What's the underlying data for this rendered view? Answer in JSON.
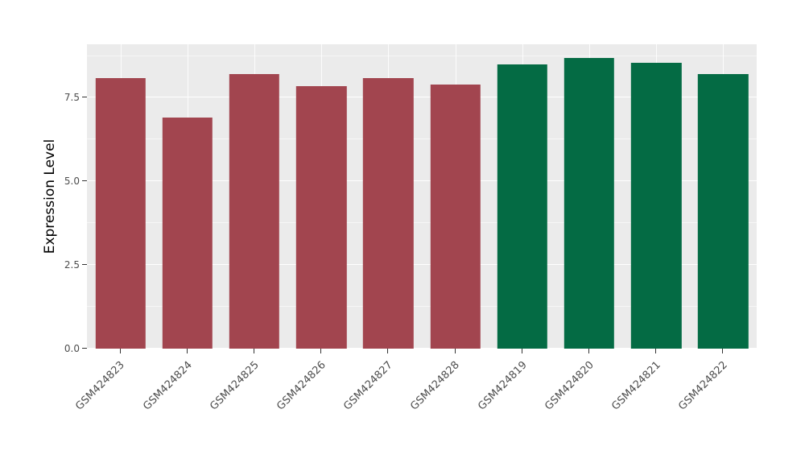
{
  "figure": {
    "background": "#FFFFFF",
    "panel_background": "#EBEBEB",
    "grid_major_color": "#FFFFFF",
    "grid_minor_color": "rgba(255,255,255,0.55)",
    "axis_text_color": "#4D4D4D",
    "axis_title_color": "#000000",
    "tick_color": "#333333",
    "group_colors": {
      "left_group": "#A2454F",
      "right_group": "#046B44"
    }
  },
  "chart_data": {
    "type": "bar",
    "title": "",
    "xlabel": "",
    "ylabel": "Expression Level",
    "categories": [
      "GSM424823",
      "GSM424824",
      "GSM424825",
      "GSM424826",
      "GSM424827",
      "GSM424828",
      "GSM424819",
      "GSM424820",
      "GSM424821",
      "GSM424822"
    ],
    "values": [
      8.1,
      6.9,
      8.2,
      7.85,
      8.1,
      7.9,
      8.5,
      8.7,
      8.55,
      8.2
    ],
    "bar_colors": [
      "#A2454F",
      "#A2454F",
      "#A2454F",
      "#A2454F",
      "#A2454F",
      "#A2454F",
      "#046B44",
      "#046B44",
      "#046B44",
      "#046B44"
    ],
    "ylim": [
      0,
      9.1
    ],
    "y_major_ticks": [
      0,
      2.5,
      5,
      7.5
    ],
    "y_tick_labels": [
      "0.0",
      "2.5",
      "5.0",
      "7.5"
    ],
    "y_minor_ticks": [
      1.25,
      3.75,
      6.25,
      8.75
    ],
    "bar_width_fraction": 0.75,
    "grid": true,
    "legend_position": "none",
    "x_label_rotation_deg": -45
  }
}
